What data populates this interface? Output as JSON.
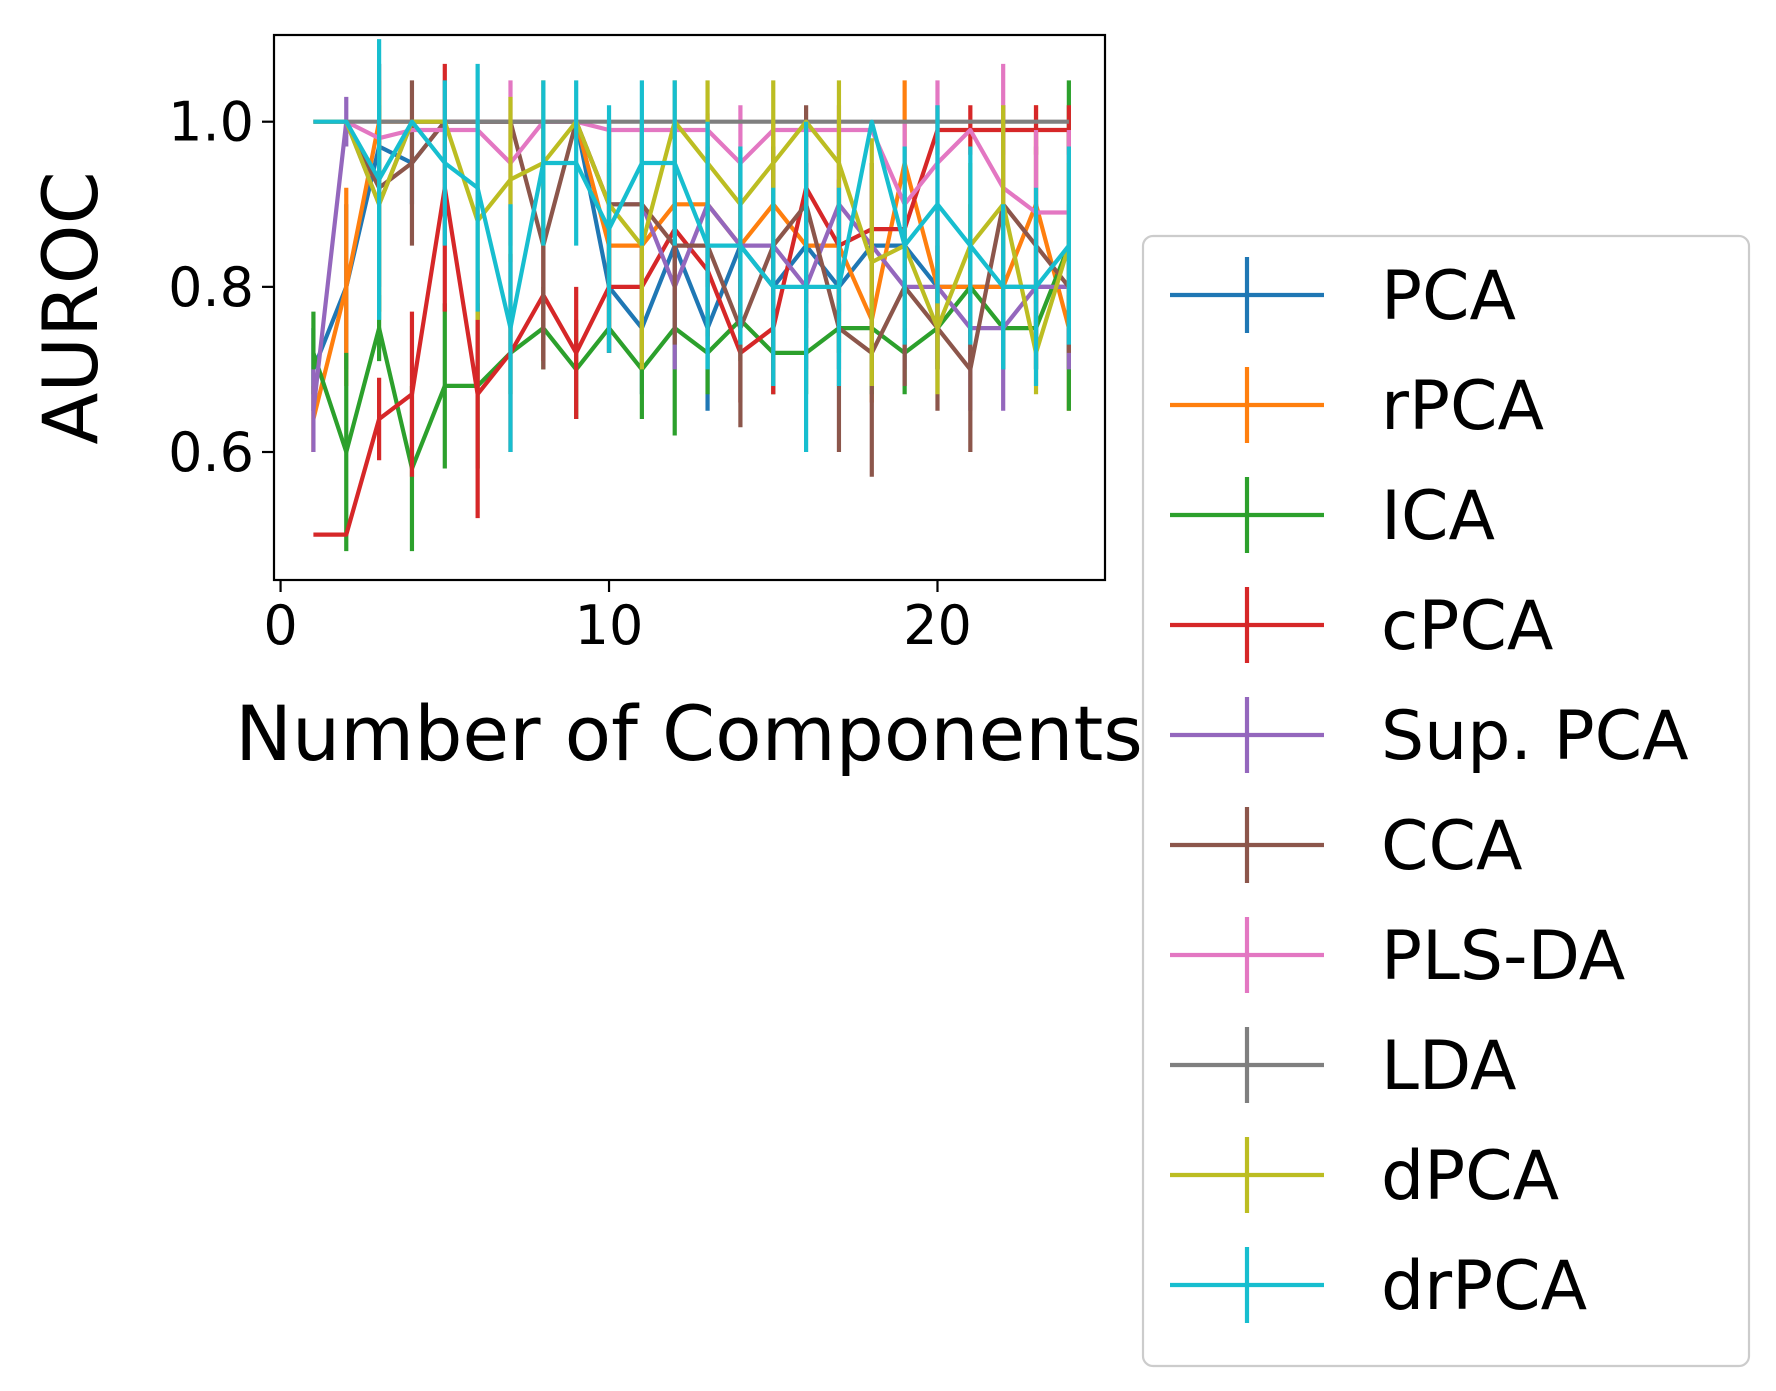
{
  "chart_data": {
    "type": "line",
    "title": "",
    "xlabel": "Number of Components",
    "ylabel": "AUROC",
    "xlim": [
      -0.2,
      25.1
    ],
    "ylim": [
      0.445,
      1.105
    ],
    "xticks": [
      0,
      10,
      20
    ],
    "xtick_labels": [
      "0",
      "10",
      "20"
    ],
    "yticks": [
      0.6,
      0.8,
      1.0
    ],
    "ytick_labels": [
      "0.6",
      "0.8",
      "1.0"
    ],
    "error_bars": true,
    "grid": false,
    "legend": "right, outside plot area",
    "x": [
      1,
      2,
      3,
      4,
      5,
      6,
      7,
      8,
      9,
      10,
      11,
      12,
      13,
      14,
      15,
      16,
      17,
      18,
      19,
      20,
      21,
      22,
      23,
      24
    ],
    "series": [
      {
        "name": "PCA",
        "color": "#1f77b4",
        "values": [
          0.7,
          0.8,
          0.97,
          0.95,
          1.0,
          1.0,
          1.0,
          1.0,
          1.0,
          0.8,
          0.75,
          0.85,
          0.75,
          0.85,
          0.8,
          0.85,
          0.8,
          0.85,
          0.85,
          0.8,
          0.8,
          0.8,
          0.8,
          0.8
        ],
        "errors": [
          0.05,
          0.1,
          0.05,
          0.05,
          0.0,
          0.0,
          0.0,
          0.0,
          0.0,
          0.08,
          0.08,
          0.1,
          0.1,
          0.1,
          0.1,
          0.1,
          0.1,
          0.1,
          0.1,
          0.1,
          0.1,
          0.1,
          0.1,
          0.1
        ]
      },
      {
        "name": "rPCA",
        "color": "#ff7f0e",
        "values": [
          0.64,
          0.8,
          1.0,
          1.0,
          1.0,
          1.0,
          1.0,
          1.0,
          1.0,
          0.85,
          0.85,
          0.9,
          0.9,
          0.85,
          0.9,
          0.85,
          0.85,
          0.76,
          0.95,
          0.8,
          0.8,
          0.8,
          0.9,
          0.75
        ],
        "errors": [
          0.04,
          0.12,
          0.05,
          0.0,
          0.0,
          0.0,
          0.0,
          0.0,
          0.0,
          0.1,
          0.1,
          0.1,
          0.1,
          0.1,
          0.1,
          0.1,
          0.1,
          0.1,
          0.1,
          0.1,
          0.1,
          0.1,
          0.12,
          0.1
        ]
      },
      {
        "name": "ICA",
        "color": "#2ca02c",
        "values": [
          0.72,
          0.6,
          0.75,
          0.58,
          0.68,
          0.68,
          0.72,
          0.75,
          0.7,
          0.75,
          0.7,
          0.75,
          0.72,
          0.76,
          0.72,
          0.72,
          0.75,
          0.75,
          0.72,
          0.75,
          0.8,
          0.75,
          0.75,
          0.85
        ],
        "errors": [
          0.05,
          0.12,
          0.04,
          0.1,
          0.1,
          0.1,
          0.05,
          0.05,
          0.06,
          0.03,
          0.06,
          0.13,
          0.05,
          0.05,
          0.05,
          0.05,
          0.03,
          0.08,
          0.05,
          0.05,
          0.05,
          0.05,
          0.05,
          0.2
        ]
      },
      {
        "name": "cPCA",
        "color": "#d62728",
        "values": [
          0.5,
          0.5,
          0.64,
          0.67,
          0.92,
          0.67,
          0.72,
          0.79,
          0.72,
          0.8,
          0.8,
          0.87,
          0.82,
          0.72,
          0.75,
          0.92,
          0.85,
          0.87,
          0.87,
          0.99,
          0.99,
          0.99,
          0.99,
          0.99
        ],
        "errors": [
          0.0,
          0.0,
          0.05,
          0.1,
          0.15,
          0.15,
          0.12,
          0.08,
          0.08,
          0.08,
          0.08,
          0.08,
          0.08,
          0.06,
          0.08,
          0.08,
          0.08,
          0.08,
          0.08,
          0.03,
          0.03,
          0.03,
          0.03,
          0.03
        ]
      },
      {
        "name": "Sup. PCA",
        "color": "#9467bd",
        "values": [
          0.65,
          1.0,
          0.9,
          1.0,
          1.0,
          1.0,
          1.0,
          1.0,
          1.0,
          0.9,
          0.9,
          0.8,
          0.9,
          0.85,
          0.85,
          0.8,
          0.9,
          0.85,
          0.8,
          0.8,
          0.75,
          0.75,
          0.8,
          0.8
        ],
        "errors": [
          0.05,
          0.03,
          0.1,
          0.0,
          0.0,
          0.0,
          0.0,
          0.0,
          0.0,
          0.1,
          0.1,
          0.1,
          0.1,
          0.1,
          0.1,
          0.1,
          0.1,
          0.1,
          0.1,
          0.1,
          0.1,
          0.1,
          0.1,
          0.1
        ]
      },
      {
        "name": "CCA",
        "color": "#8c564b",
        "values": [
          1.0,
          1.0,
          0.92,
          0.95,
          1.0,
          1.0,
          1.0,
          0.85,
          1.0,
          0.9,
          0.9,
          0.85,
          0.85,
          0.75,
          0.85,
          0.9,
          0.75,
          0.72,
          0.8,
          0.75,
          0.7,
          0.9,
          0.85,
          0.8
        ],
        "errors": [
          0.0,
          0.0,
          0.15,
          0.1,
          0.0,
          0.0,
          0.0,
          0.15,
          0.0,
          0.1,
          0.1,
          0.12,
          0.12,
          0.12,
          0.12,
          0.12,
          0.15,
          0.15,
          0.12,
          0.1,
          0.1,
          0.12,
          0.12,
          0.08
        ]
      },
      {
        "name": "PLS-DA",
        "color": "#e377c2",
        "values": [
          1.0,
          1.0,
          0.98,
          0.99,
          0.99,
          0.99,
          0.95,
          1.0,
          1.0,
          0.99,
          0.99,
          0.99,
          0.99,
          0.95,
          0.99,
          0.99,
          0.99,
          0.99,
          0.9,
          0.95,
          0.99,
          0.92,
          0.89,
          0.89
        ],
        "errors": [
          0.0,
          0.0,
          0.02,
          0.0,
          0.0,
          0.0,
          0.1,
          0.0,
          0.0,
          0.0,
          0.0,
          0.0,
          0.02,
          0.07,
          0.0,
          0.0,
          0.03,
          0.0,
          0.1,
          0.1,
          0.0,
          0.15,
          0.1,
          0.1
        ]
      },
      {
        "name": "LDA",
        "color": "#7f7f7f",
        "values": [
          1.0,
          1.0,
          1.0,
          1.0,
          1.0,
          1.0,
          1.0,
          1.0,
          1.0,
          1.0,
          1.0,
          1.0,
          1.0,
          1.0,
          1.0,
          1.0,
          1.0,
          1.0,
          1.0,
          1.0,
          1.0,
          1.0,
          1.0,
          1.0
        ],
        "errors": [
          0,
          0,
          0,
          0,
          0,
          0,
          0,
          0,
          0,
          0,
          0,
          0,
          0,
          0,
          0,
          0,
          0,
          0,
          0,
          0,
          0,
          0,
          0,
          0
        ]
      },
      {
        "name": "dPCA",
        "color": "#bcbd22",
        "values": [
          1.0,
          1.0,
          0.9,
          1.0,
          1.0,
          0.88,
          0.93,
          0.95,
          1.0,
          0.9,
          0.85,
          1.0,
          0.95,
          0.9,
          0.95,
          1.0,
          0.95,
          0.83,
          0.85,
          0.75,
          0.85,
          0.9,
          0.72,
          0.85
        ],
        "errors": [
          0.0,
          0.0,
          0.13,
          0.0,
          0.0,
          0.12,
          0.1,
          0.1,
          0.0,
          0.1,
          0.15,
          0.05,
          0.1,
          0.07,
          0.1,
          0.0,
          0.1,
          0.15,
          0.1,
          0.08,
          0.1,
          0.12,
          0.05,
          0.1
        ]
      },
      {
        "name": "drPCA",
        "color": "#17becf",
        "values": [
          1.0,
          1.0,
          0.93,
          1.0,
          0.95,
          0.92,
          0.75,
          0.95,
          0.95,
          0.87,
          0.95,
          0.95,
          0.85,
          0.85,
          0.8,
          0.8,
          0.8,
          1.0,
          0.85,
          0.9,
          0.85,
          0.8,
          0.8,
          0.85
        ],
        "errors": [
          0.0,
          0.0,
          0.17,
          0.0,
          0.1,
          0.15,
          0.15,
          0.1,
          0.1,
          0.15,
          0.1,
          0.1,
          0.15,
          0.12,
          0.12,
          0.2,
          0.12,
          0.0,
          0.12,
          0.12,
          0.12,
          0.1,
          0.12,
          0.12
        ]
      }
    ]
  }
}
